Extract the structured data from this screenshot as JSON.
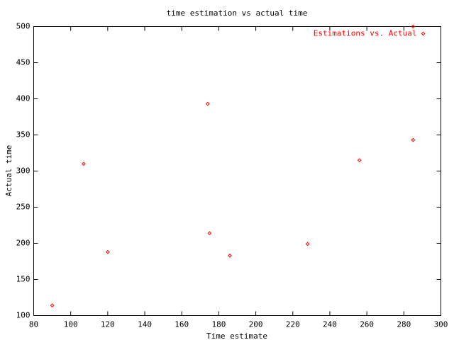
{
  "chart_data": {
    "type": "scatter",
    "title": "time estimation vs actual time",
    "x_label": "Time estimate",
    "y_label": "Actual time",
    "series": [
      {
        "name": "Estimations vs. Actual",
        "color": "#ff0000",
        "x": [
          90,
          107,
          120,
          174,
          175,
          186,
          228,
          256,
          285,
          285
        ],
        "values": [
          114,
          310,
          188,
          393,
          214,
          183,
          199,
          315,
          343,
          500
        ]
      }
    ],
    "xlim": [
      80,
      300
    ],
    "xticks": [
      80,
      100,
      120,
      140,
      160,
      180,
      200,
      220,
      240,
      260,
      280,
      300
    ],
    "ylim": [
      100,
      500
    ],
    "yticks": [
      100,
      150,
      200,
      250,
      300,
      350,
      400,
      450,
      500
    ],
    "legend": "top right",
    "grid": false
  }
}
